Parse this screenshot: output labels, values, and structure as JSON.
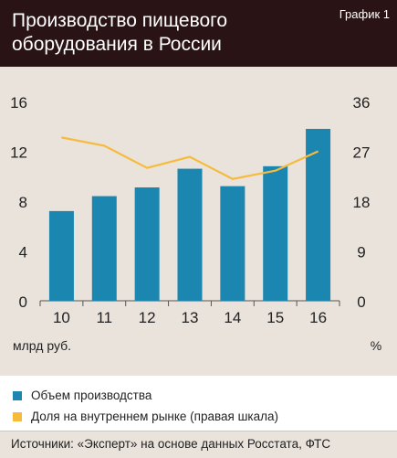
{
  "header": {
    "title": "Производство пищевого оборудования в России",
    "badge": "График 1"
  },
  "legend": {
    "items": [
      {
        "label": "Объем производства",
        "color": "#1b86b0"
      },
      {
        "label": "Доля на внутреннем рынке (правая шкала)",
        "color": "#f7bb3b"
      }
    ]
  },
  "source": "Источники: «Эксперт» на основе данных Росстата, ФТС",
  "chart_data": {
    "type": "bar",
    "categories": [
      "10",
      "11",
      "12",
      "13",
      "14",
      "15",
      "16"
    ],
    "series": [
      {
        "name": "Объем производства",
        "type": "bar",
        "axis": "left",
        "color": "#1b86b0",
        "values": [
          7.2,
          8.4,
          9.1,
          10.6,
          9.2,
          10.8,
          13.8
        ]
      },
      {
        "name": "Доля на внутреннем рынке (правая шкала)",
        "type": "line",
        "axis": "right",
        "color": "#f7bb3b",
        "values": [
          29.5,
          28,
          24,
          26,
          22,
          23.5,
          27
        ]
      }
    ],
    "y_left": {
      "ticks": [
        0,
        4,
        8,
        12,
        16
      ],
      "lim": [
        0,
        16
      ],
      "unit": "млрд руб."
    },
    "y_right": {
      "ticks": [
        0,
        9,
        18,
        27,
        36
      ],
      "lim": [
        0,
        36
      ],
      "unit": "%"
    },
    "grid": false
  }
}
